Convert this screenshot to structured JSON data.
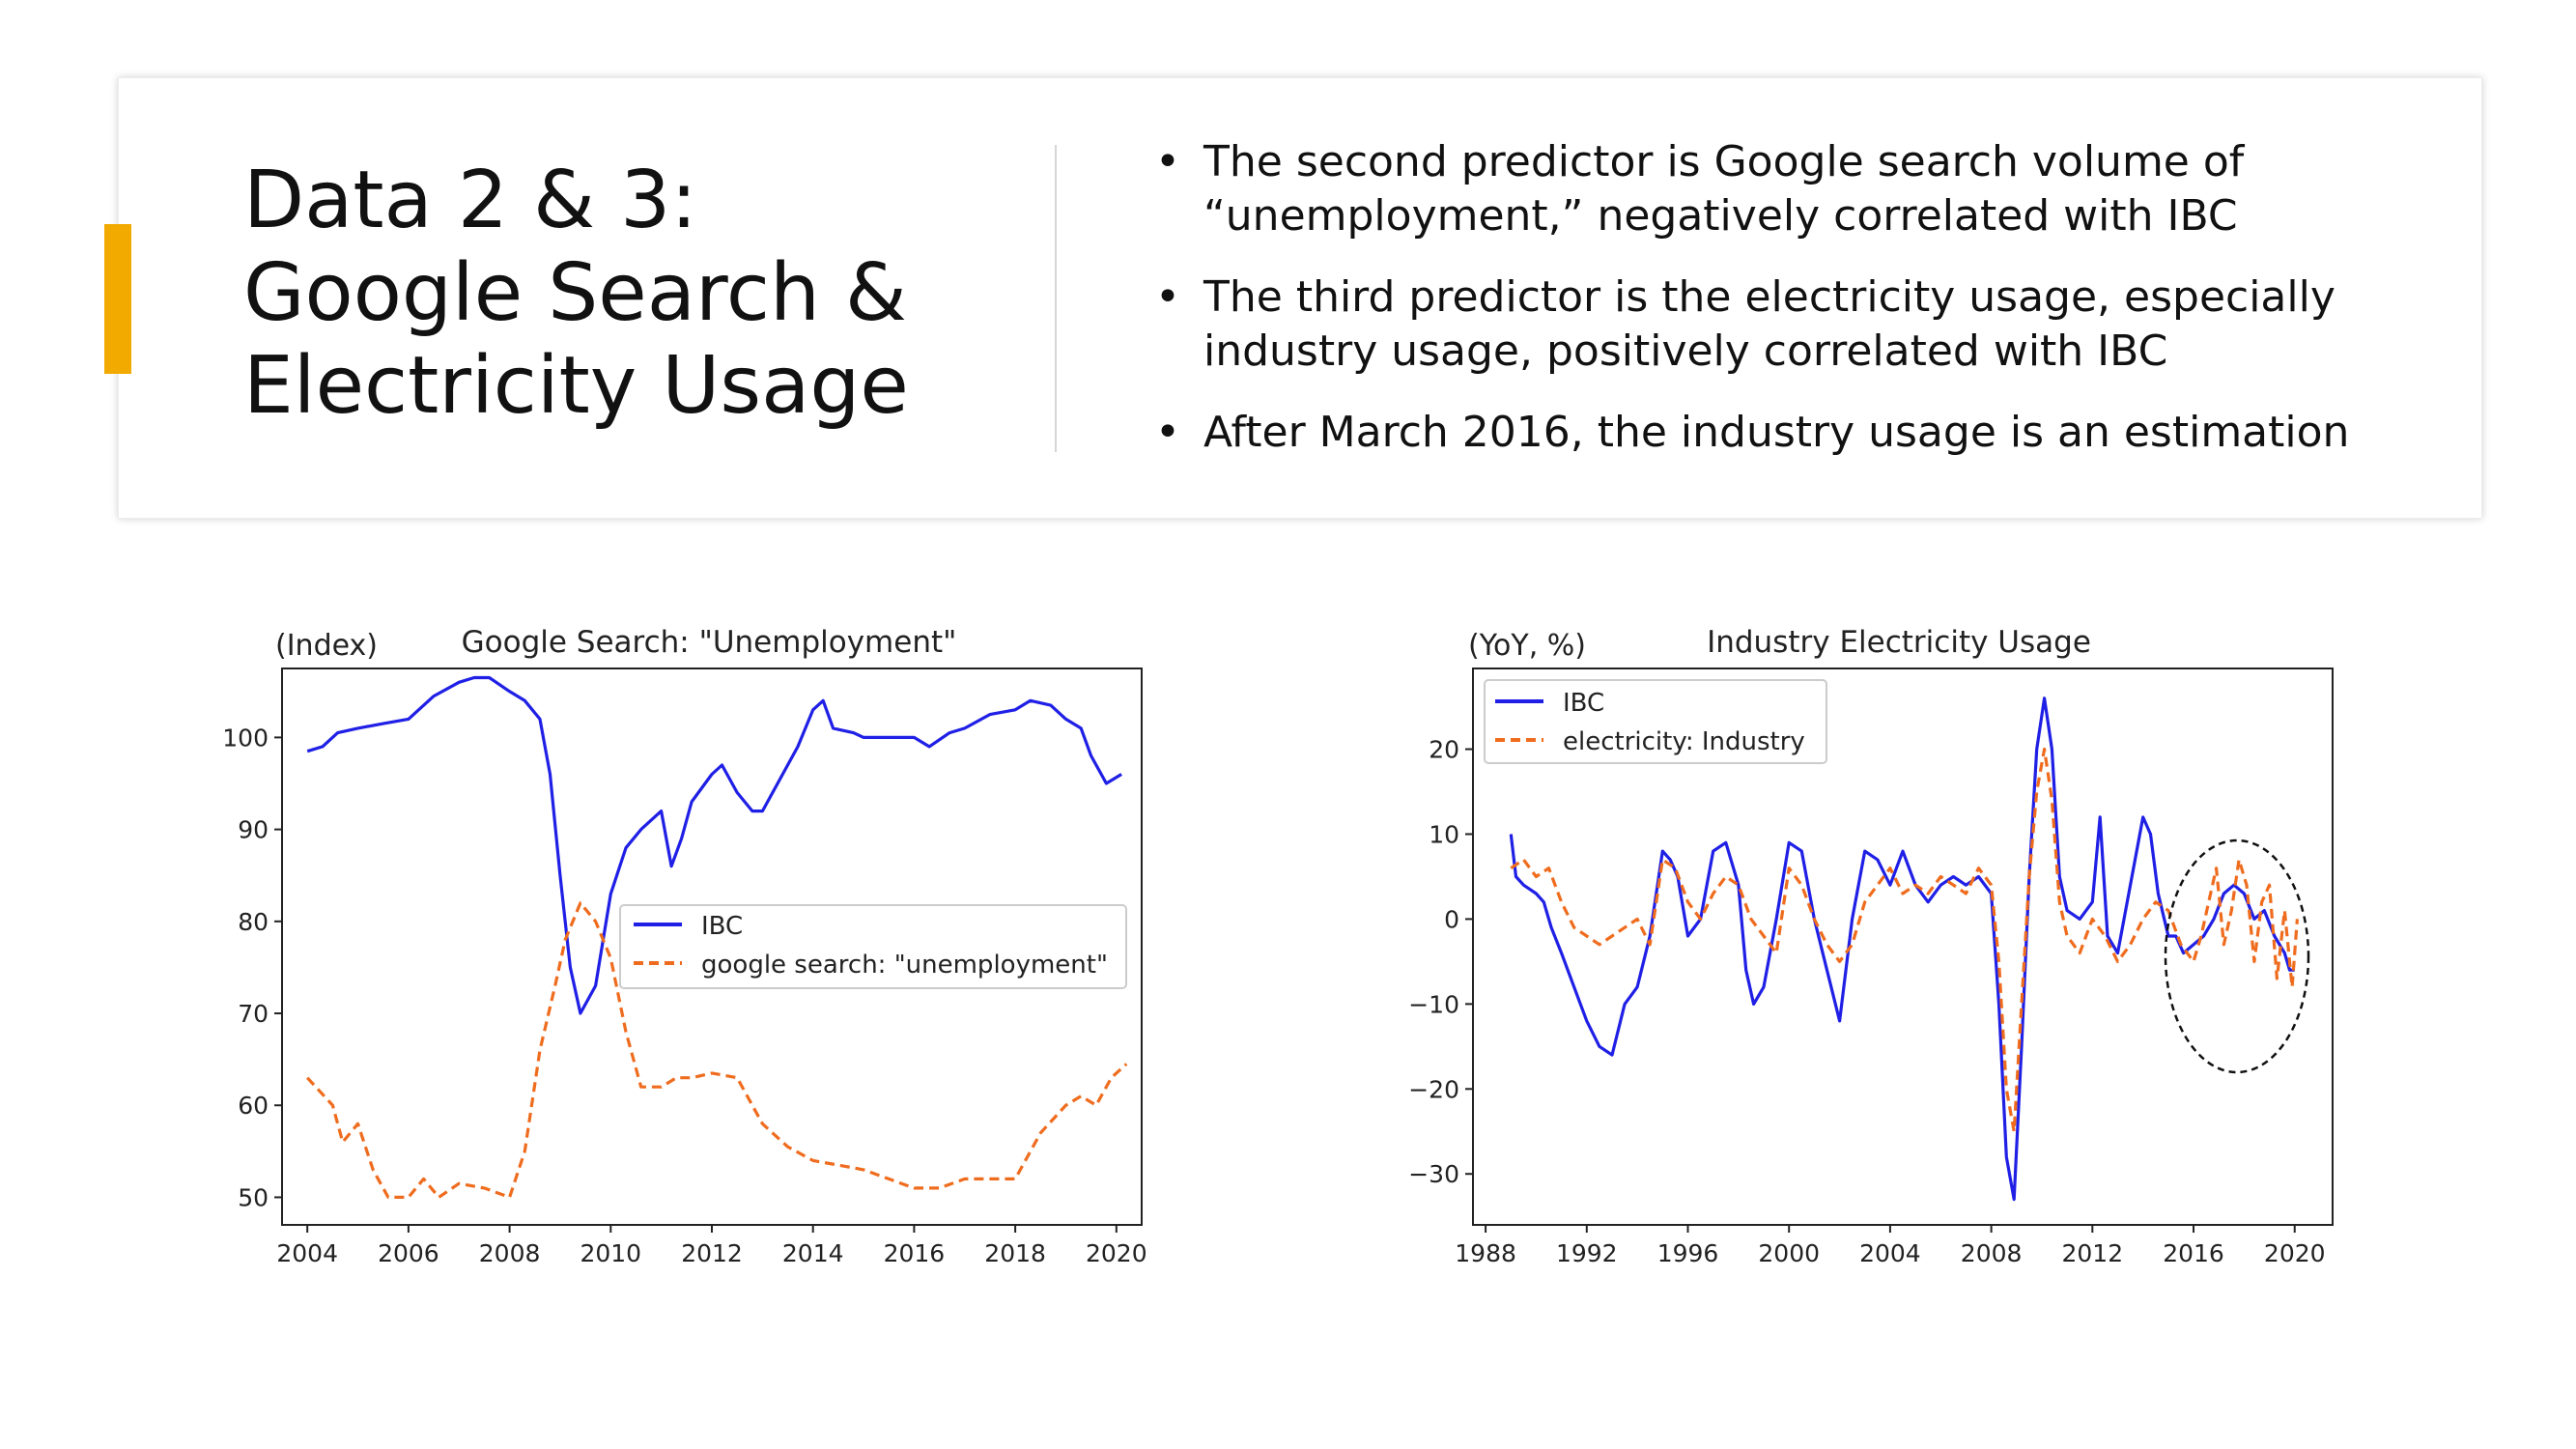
{
  "slide": {
    "title_lines": [
      "Data 2 & 3:",
      "Google Search &",
      "Electricity Usage"
    ],
    "bullets": [
      "The second predictor is Google search volume of “unemployment,” negatively correlated with IBC",
      "The third predictor is the electricity usage, especially industry usage, positively correlated with IBC",
      "After March 2016, the industry usage is an estimation"
    ],
    "accent_color": "#f2a900"
  },
  "chart_data": [
    {
      "type": "line",
      "title": "Google Search: \"Unemployment\"",
      "ylabel": "(Index)",
      "xlim": [
        2003.5,
        2020.5
      ],
      "ylim": [
        47,
        107.5
      ],
      "xticks": [
        2004,
        2006,
        2008,
        2010,
        2012,
        2014,
        2016,
        2018,
        2020
      ],
      "yticks": [
        50,
        60,
        70,
        80,
        90,
        100
      ],
      "legend_position": "center-right",
      "series": [
        {
          "name": "IBC",
          "color": "#1f1fe6",
          "style": "solid",
          "x": [
            2004.0,
            2004.3,
            2004.6,
            2005.0,
            2005.5,
            2006.0,
            2006.5,
            2007.0,
            2007.3,
            2007.6,
            2008.0,
            2008.3,
            2008.6,
            2008.8,
            2009.0,
            2009.2,
            2009.4,
            2009.7,
            2010.0,
            2010.3,
            2010.6,
            2011.0,
            2011.2,
            2011.4,
            2011.6,
            2012.0,
            2012.2,
            2012.5,
            2012.8,
            2013.0,
            2013.3,
            2013.7,
            2014.0,
            2014.2,
            2014.4,
            2014.8,
            2015.0,
            2015.5,
            2016.0,
            2016.3,
            2016.7,
            2017.0,
            2017.5,
            2018.0,
            2018.3,
            2018.7,
            2019.0,
            2019.3,
            2019.5,
            2019.8,
            2020.1
          ],
          "values": [
            98.5,
            99,
            100.5,
            101,
            101.5,
            102,
            104.5,
            106,
            106.5,
            106.5,
            105,
            104,
            102,
            96,
            85,
            75,
            70,
            73,
            83,
            88,
            90,
            92,
            86,
            89,
            93,
            96,
            97,
            94,
            92,
            92,
            95,
            99,
            103,
            104,
            101,
            100.5,
            100,
            100,
            100,
            99,
            100.5,
            101,
            102.5,
            103,
            104,
            103.5,
            102,
            101,
            98,
            95,
            96
          ]
        },
        {
          "name": "google search: \"unemployment\"",
          "color": "#ef6c1e",
          "style": "dashed",
          "x": [
            2004.0,
            2004.5,
            2004.7,
            2005.0,
            2005.3,
            2005.6,
            2006.0,
            2006.3,
            2006.6,
            2007.0,
            2007.5,
            2008.0,
            2008.3,
            2008.6,
            2008.9,
            2009.1,
            2009.4,
            2009.7,
            2010.0,
            2010.3,
            2010.6,
            2011.0,
            2011.3,
            2011.6,
            2012.0,
            2012.5,
            2013.0,
            2013.5,
            2014.0,
            2014.5,
            2015.0,
            2015.5,
            2016.0,
            2016.5,
            2017.0,
            2017.5,
            2018.0,
            2018.5,
            2019.0,
            2019.3,
            2019.6,
            2019.9,
            2020.2
          ],
          "values": [
            63,
            60,
            56,
            58,
            53,
            50,
            50,
            52,
            50,
            51.5,
            51,
            50,
            55,
            66,
            73,
            78,
            82,
            80,
            76,
            68,
            62,
            62,
            63,
            63,
            63.5,
            63,
            58,
            55.5,
            54,
            53.5,
            53,
            52,
            51,
            51,
            52,
            52,
            52,
            57,
            60,
            61,
            60,
            63,
            64.5
          ]
        }
      ]
    },
    {
      "type": "line",
      "title": "Industry Electricity Usage",
      "ylabel": "(YoY, %)",
      "xlim": [
        1987.5,
        2021.5
      ],
      "ylim": [
        -36,
        29.5
      ],
      "xticks": [
        1988,
        1992,
        1996,
        2000,
        2004,
        2008,
        2012,
        2016,
        2020
      ],
      "yticks": [
        20,
        10,
        0,
        -10,
        -20,
        -30
      ],
      "legend_position": "top-left",
      "series": [
        {
          "name": "IBC",
          "color": "#1f1fe6",
          "style": "solid",
          "x": [
            1989.0,
            1989.2,
            1989.5,
            1990.0,
            1990.3,
            1990.6,
            1991.0,
            1991.5,
            1992.0,
            1992.5,
            1993.0,
            1993.5,
            1994.0,
            1994.5,
            1995.0,
            1995.3,
            1995.6,
            1996.0,
            1996.5,
            1997.0,
            1997.5,
            1998.0,
            1998.3,
            1998.6,
            1999.0,
            1999.5,
            2000.0,
            2000.5,
            2001.0,
            2001.5,
            2002.0,
            2002.5,
            2003.0,
            2003.5,
            2004.0,
            2004.5,
            2005.0,
            2005.5,
            2006.0,
            2006.5,
            2007.0,
            2007.5,
            2008.0,
            2008.3,
            2008.6,
            2008.9,
            2009.2,
            2009.5,
            2009.8,
            2010.1,
            2010.4,
            2010.7,
            2011.0,
            2011.5,
            2012.0,
            2012.3,
            2012.6,
            2013.0,
            2013.5,
            2014.0,
            2014.3,
            2014.6,
            2015.0,
            2015.3,
            2015.6,
            2016.0,
            2016.4,
            2016.8,
            2017.2,
            2017.6,
            2018.0,
            2018.4,
            2018.8,
            2019.2,
            2019.6,
            2019.8,
            2020.0
          ],
          "values": [
            10,
            5,
            4,
            3,
            2,
            -1,
            -4,
            -8,
            -12,
            -15,
            -16,
            -10,
            -8,
            -2,
            8,
            7,
            5,
            -2,
            0,
            8,
            9,
            4,
            -6,
            -10,
            -8,
            0,
            9,
            8,
            0,
            -6,
            -12,
            0,
            8,
            7,
            4,
            8,
            4,
            2,
            4,
            5,
            4,
            5,
            3,
            -10,
            -28,
            -33,
            -15,
            5,
            20,
            26,
            20,
            5,
            1,
            0,
            2,
            12,
            -2,
            -4,
            4,
            12,
            10,
            3,
            -2,
            -2,
            -4,
            -3,
            -2,
            0,
            3,
            4,
            3,
            0,
            1,
            -2,
            -4,
            -6,
            -6
          ]
        },
        {
          "name": "electricity: Industry",
          "color": "#ef6c1e",
          "style": "dashed",
          "x": [
            1989.0,
            1989.5,
            1990.0,
            1990.5,
            1991.0,
            1991.5,
            1992.0,
            1992.5,
            1993.0,
            1993.5,
            1994.0,
            1994.5,
            1995.0,
            1995.5,
            1996.0,
            1996.5,
            1997.0,
            1997.5,
            1998.0,
            1998.5,
            1999.0,
            1999.5,
            2000.0,
            2000.5,
            2001.0,
            2001.5,
            2002.0,
            2002.5,
            2003.0,
            2003.5,
            2004.0,
            2004.5,
            2005.0,
            2005.5,
            2006.0,
            2006.5,
            2007.0,
            2007.5,
            2008.0,
            2008.3,
            2008.6,
            2008.9,
            2009.2,
            2009.5,
            2009.8,
            2010.1,
            2010.4,
            2010.7,
            2011.0,
            2011.5,
            2012.0,
            2012.5,
            2013.0,
            2013.5,
            2014.0,
            2014.5,
            2015.0,
            2015.5,
            2016.0,
            2016.3,
            2016.6,
            2016.9,
            2017.2,
            2017.5,
            2017.8,
            2018.1,
            2018.4,
            2018.7,
            2019.0,
            2019.3,
            2019.6,
            2019.9,
            2020.1
          ],
          "values": [
            6,
            7,
            5,
            6,
            2,
            -1,
            -2,
            -3,
            -2,
            -1,
            0,
            -3,
            7,
            6,
            2,
            0,
            3,
            5,
            4,
            0,
            -2,
            -4,
            6,
            4,
            0,
            -3,
            -5,
            -3,
            2,
            4,
            6,
            3,
            4,
            3,
            5,
            4,
            3,
            6,
            4,
            -5,
            -20,
            -25,
            -10,
            5,
            15,
            20,
            14,
            2,
            -2,
            -4,
            0,
            -2,
            -5,
            -3,
            0,
            2,
            1,
            -3,
            -5,
            -2,
            2,
            6,
            -3,
            1,
            7,
            4,
            -5,
            2,
            4,
            -7,
            1,
            -8,
            0
          ]
        }
      ]
    }
  ]
}
